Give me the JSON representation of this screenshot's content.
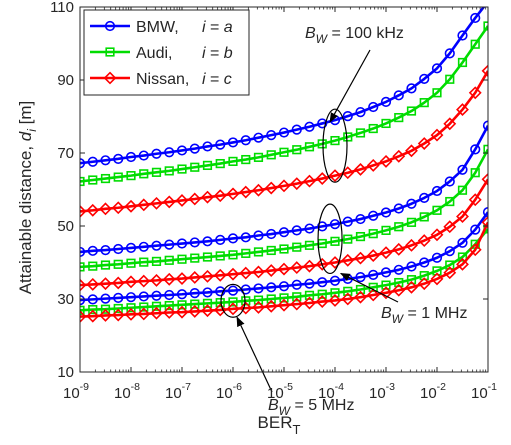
{
  "chart_data": {
    "type": "line",
    "x_scale": "log",
    "xlabel_base": "BER",
    "xlabel_sub": "T",
    "ylabel_main": "Attainable distance, ",
    "ylabel_var": "d",
    "ylabel_sub": "i",
    "ylabel_unit": "  [m]",
    "xlim": [
      1e-09,
      0.1
    ],
    "ylim": [
      10,
      110
    ],
    "x_ticks": [
      {
        "base": "10",
        "exp": "-9",
        "value": 1e-09
      },
      {
        "base": "10",
        "exp": "-8",
        "value": 1e-08
      },
      {
        "base": "10",
        "exp": "-7",
        "value": 1e-07
      },
      {
        "base": "10",
        "exp": "-6",
        "value": 1e-06
      },
      {
        "base": "10",
        "exp": "-5",
        "value": 1e-05
      },
      {
        "base": "10",
        "exp": "-4",
        "value": 0.0001
      },
      {
        "base": "10",
        "exp": "-3",
        "value": 0.001
      },
      {
        "base": "10",
        "exp": "-2",
        "value": 0.01
      },
      {
        "base": "10",
        "exp": "-1",
        "value": 0.1
      }
    ],
    "y_ticks": [
      "10",
      "30",
      "50",
      "70",
      "90",
      "110"
    ],
    "grid": false,
    "legend_position": "top-left",
    "x": [
      1e-09,
      1.78e-09,
      3.16e-09,
      5.62e-09,
      1e-08,
      1.78e-08,
      3.16e-08,
      5.62e-08,
      1e-07,
      1.78e-07,
      3.16e-07,
      5.62e-07,
      1e-06,
      1.78e-06,
      3.16e-06,
      5.62e-06,
      1e-05,
      1.78e-05,
      3.16e-05,
      5.62e-05,
      0.0001,
      0.000178,
      0.000316,
      0.000562,
      0.001,
      0.00178,
      0.00316,
      0.00562,
      0.01,
      0.0178,
      0.0316,
      0.0562,
      0.1
    ],
    "series": [
      {
        "name": "BMW,",
        "tag": "i = a",
        "color": "#0000ff",
        "marker": "circle",
        "group": "Bw = 100 kHz",
        "values": [
          67.2,
          67.6,
          68.0,
          68.4,
          68.9,
          69.3,
          69.8,
          70.2,
          70.7,
          71.2,
          71.8,
          72.3,
          72.9,
          73.5,
          74.2,
          74.9,
          75.6,
          76.4,
          77.2,
          78.1,
          79.0,
          80.1,
          81.2,
          82.6,
          84.0,
          85.8,
          87.7,
          90.3,
          93.2,
          97.3,
          102.2,
          107.0,
          111.5
        ]
      },
      {
        "name": "Audi,",
        "tag": "i = b",
        "color": "#00dc00",
        "marker": "square",
        "group": "Bw = 100 kHz",
        "values": [
          62.2,
          62.6,
          63.0,
          63.4,
          63.8,
          64.3,
          64.7,
          65.1,
          65.6,
          66.1,
          66.6,
          67.1,
          67.7,
          68.2,
          68.8,
          69.5,
          70.2,
          70.9,
          71.7,
          72.5,
          73.4,
          74.4,
          75.5,
          76.7,
          78.1,
          79.7,
          81.5,
          83.8,
          86.5,
          90.2,
          94.8,
          99.8,
          104.8
        ]
      },
      {
        "name": "Nissan,",
        "tag": "i = c",
        "color": "#ff0000",
        "marker": "diamond",
        "group": "Bw = 100 kHz",
        "values": [
          54.0,
          54.3,
          54.7,
          55.0,
          55.4,
          55.8,
          56.2,
          56.6,
          57.0,
          57.4,
          57.9,
          58.3,
          58.8,
          59.3,
          59.8,
          60.4,
          61.0,
          61.6,
          62.3,
          63.0,
          63.8,
          64.6,
          65.5,
          66.6,
          67.7,
          69.1,
          70.6,
          72.6,
          74.9,
          78.0,
          81.9,
          86.5,
          92.5
        ]
      },
      {
        "name": "",
        "color": "#0000ff",
        "marker": "circle",
        "group": "Bw = 1 MHz",
        "values": [
          42.9,
          43.2,
          43.4,
          43.7,
          44.0,
          44.3,
          44.6,
          44.9,
          45.2,
          45.5,
          45.8,
          46.2,
          46.6,
          46.9,
          47.4,
          47.8,
          48.3,
          48.8,
          49.3,
          49.9,
          50.5,
          51.2,
          51.9,
          52.8,
          53.7,
          54.8,
          56.1,
          57.7,
          59.6,
          62.2,
          65.4,
          71.0,
          77.5
        ]
      },
      {
        "name": "",
        "color": "#00dc00",
        "marker": "square",
        "group": "Bw = 1 MHz",
        "values": [
          38.8,
          39.0,
          39.3,
          39.5,
          39.8,
          40.1,
          40.3,
          40.6,
          40.9,
          41.2,
          41.5,
          41.8,
          42.1,
          42.5,
          42.9,
          43.3,
          43.7,
          44.2,
          44.7,
          45.2,
          45.8,
          46.4,
          47.1,
          47.9,
          48.8,
          49.8,
          51.0,
          52.5,
          54.3,
          56.7,
          59.8,
          64.6,
          71.0
        ]
      },
      {
        "name": "",
        "color": "#ff0000",
        "marker": "diamond",
        "group": "Bw = 1 MHz",
        "values": [
          33.8,
          34.0,
          34.2,
          34.4,
          34.7,
          34.9,
          35.1,
          35.4,
          35.6,
          35.9,
          36.2,
          36.5,
          36.8,
          37.1,
          37.4,
          37.8,
          38.2,
          38.6,
          39.0,
          39.5,
          40.0,
          40.6,
          41.2,
          41.9,
          42.7,
          43.6,
          44.7,
          46.0,
          47.6,
          49.8,
          52.6,
          57.2,
          62.8
        ]
      },
      {
        "name": "",
        "color": "#0000ff",
        "marker": "circle",
        "group": "Bw = 5 MHz",
        "values": [
          29.7,
          29.9,
          30.1,
          30.3,
          30.5,
          30.7,
          30.9,
          31.1,
          31.3,
          31.6,
          31.8,
          32.1,
          32.3,
          32.6,
          32.9,
          33.2,
          33.5,
          33.9,
          34.2,
          34.6,
          35.0,
          35.5,
          36.0,
          36.6,
          37.3,
          38.0,
          38.9,
          40.0,
          41.3,
          43.1,
          45.4,
          49.0,
          53.8
        ]
      },
      {
        "name": "",
        "color": "#00dc00",
        "marker": "square",
        "group": "Bw = 5 MHz",
        "values": [
          26.9,
          27.1,
          27.2,
          27.4,
          27.6,
          27.8,
          28.0,
          28.2,
          28.4,
          28.6,
          28.8,
          29.0,
          29.2,
          29.5,
          29.7,
          30.0,
          30.3,
          30.6,
          31.0,
          31.3,
          31.7,
          32.1,
          32.6,
          33.2,
          33.8,
          34.5,
          35.3,
          36.4,
          37.7,
          39.3,
          41.5,
          45.0,
          49.2
        ]
      },
      {
        "name": "",
        "color": "#ff0000",
        "marker": "diamond",
        "group": "Bw = 5 MHz",
        "values": [
          25.2,
          25.3,
          25.5,
          25.6,
          25.8,
          25.9,
          26.1,
          26.3,
          26.4,
          26.6,
          26.8,
          27.0,
          27.3,
          27.5,
          27.7,
          28.0,
          28.3,
          28.6,
          28.9,
          29.3,
          29.6,
          30.0,
          30.5,
          31.1,
          31.7,
          32.4,
          33.2,
          34.2,
          35.5,
          37.2,
          39.5,
          43.5,
          51.0
        ]
      }
    ],
    "legend": [
      {
        "name": "BMW,",
        "tag_var": "i",
        "tag_eq": " = ",
        "tag_val": "a",
        "color": "#0000ff",
        "marker": "circle"
      },
      {
        "name": "Audi,",
        "tag_var": "i",
        "tag_eq": " = ",
        "tag_val": "b",
        "color": "#00dc00",
        "marker": "square"
      },
      {
        "name": "Nissan,",
        "tag_var": "i",
        "tag_eq": " = ",
        "tag_val": "c",
        "color": "#ff0000",
        "marker": "diamond"
      }
    ],
    "annotations": [
      {
        "var": "B",
        "sub": "W",
        "text": " = 100 kHz",
        "ellipse_x": 0.0001,
        "ellipse_y": [
          62,
          82
        ],
        "arrow_to": [
          8e-05,
          78.5
        ]
      },
      {
        "var": "B",
        "sub": "W",
        "text": " = 1 MHz",
        "ellipse_x": 8e-05,
        "ellipse_y": [
          37,
          56
        ],
        "arrow_to": [
          0.00013,
          37
        ]
      },
      {
        "var": "B",
        "sub": "W",
        "text": " = 5 MHz",
        "ellipse_x": 1e-06,
        "ellipse_y": [
          25,
          34
        ],
        "arrow_to": [
          1.2e-06,
          25
        ]
      }
    ]
  }
}
